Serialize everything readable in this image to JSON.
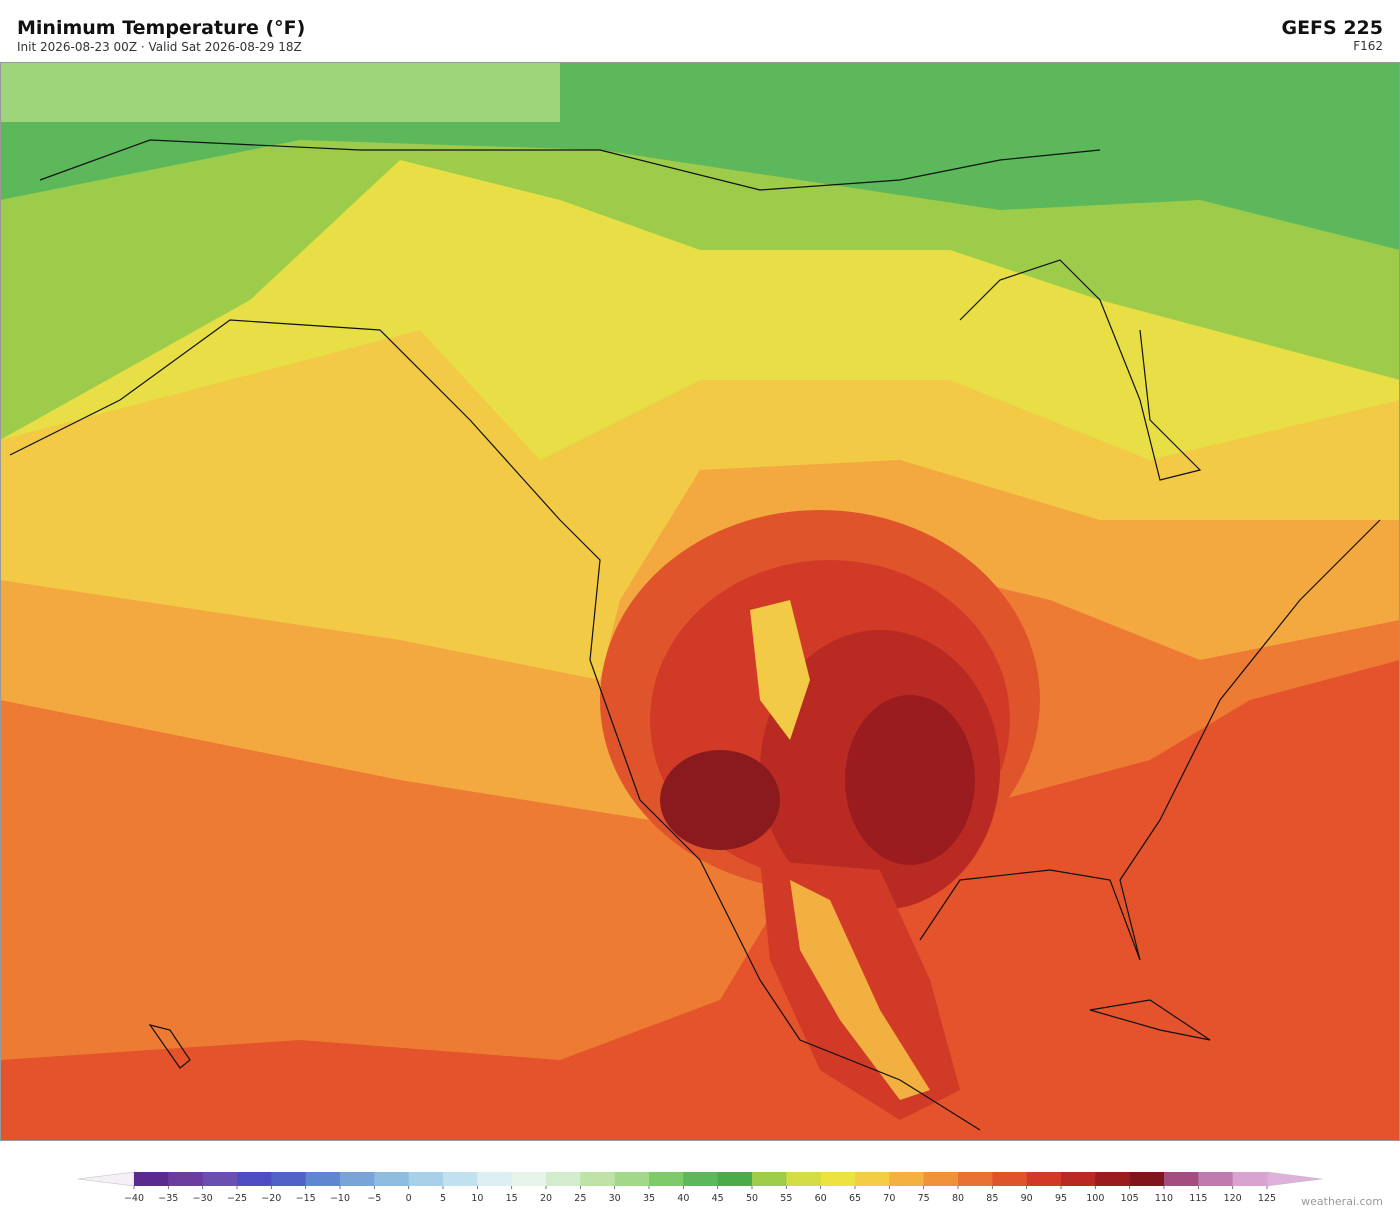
{
  "header": {
    "title": "Minimum Temperature  (°F)",
    "subtitle": "Init 2026-08-23 00Z  ·  Valid Sat 2026-08-29 18Z",
    "model": "GEFS  225",
    "forecast_hour": "F162"
  },
  "colorbar": {
    "ticks": [
      {
        "value": -40,
        "label": "−40"
      },
      {
        "value": -35,
        "label": "−35"
      },
      {
        "value": -30,
        "label": "−30"
      },
      {
        "value": -25,
        "label": "−25"
      },
      {
        "value": -20,
        "label": "−20"
      },
      {
        "value": -15,
        "label": "−15"
      },
      {
        "value": -10,
        "label": "−10"
      },
      {
        "value": -5,
        "label": "−5"
      },
      0,
      5,
      10,
      15,
      20,
      25,
      30,
      35,
      40,
      45,
      50,
      55,
      60,
      65,
      70,
      75,
      80,
      85,
      90,
      95,
      100,
      105,
      110,
      115,
      120,
      125
    ],
    "colors": [
      "#5a2a8f",
      "#6a3c9e",
      "#6b4fb0",
      "#4d4cc2",
      "#4f62c8",
      "#5f86d0",
      "#7aa3d8",
      "#8fbde0",
      "#a8d0e8",
      "#c2e1ef",
      "#dceff3",
      "#e6f4ea",
      "#d4ecce",
      "#bfe3a6",
      "#a3d88a",
      "#7fcb6c",
      "#5cb85a",
      "#4aab4a",
      "#9ccc4a",
      "#d2dc44",
      "#ebe342",
      "#f2cd45",
      "#f3b13f",
      "#ef923a",
      "#e87233",
      "#e0542c",
      "#d13a26",
      "#b82a22",
      "#9b1c1e",
      "#7f161c",
      "#a54c80",
      "#c07aae",
      "#d9a3d0"
    ],
    "under_color": "#f4f0f6",
    "over_color": "#e0b0dc"
  },
  "credit": "weatherai.com"
}
